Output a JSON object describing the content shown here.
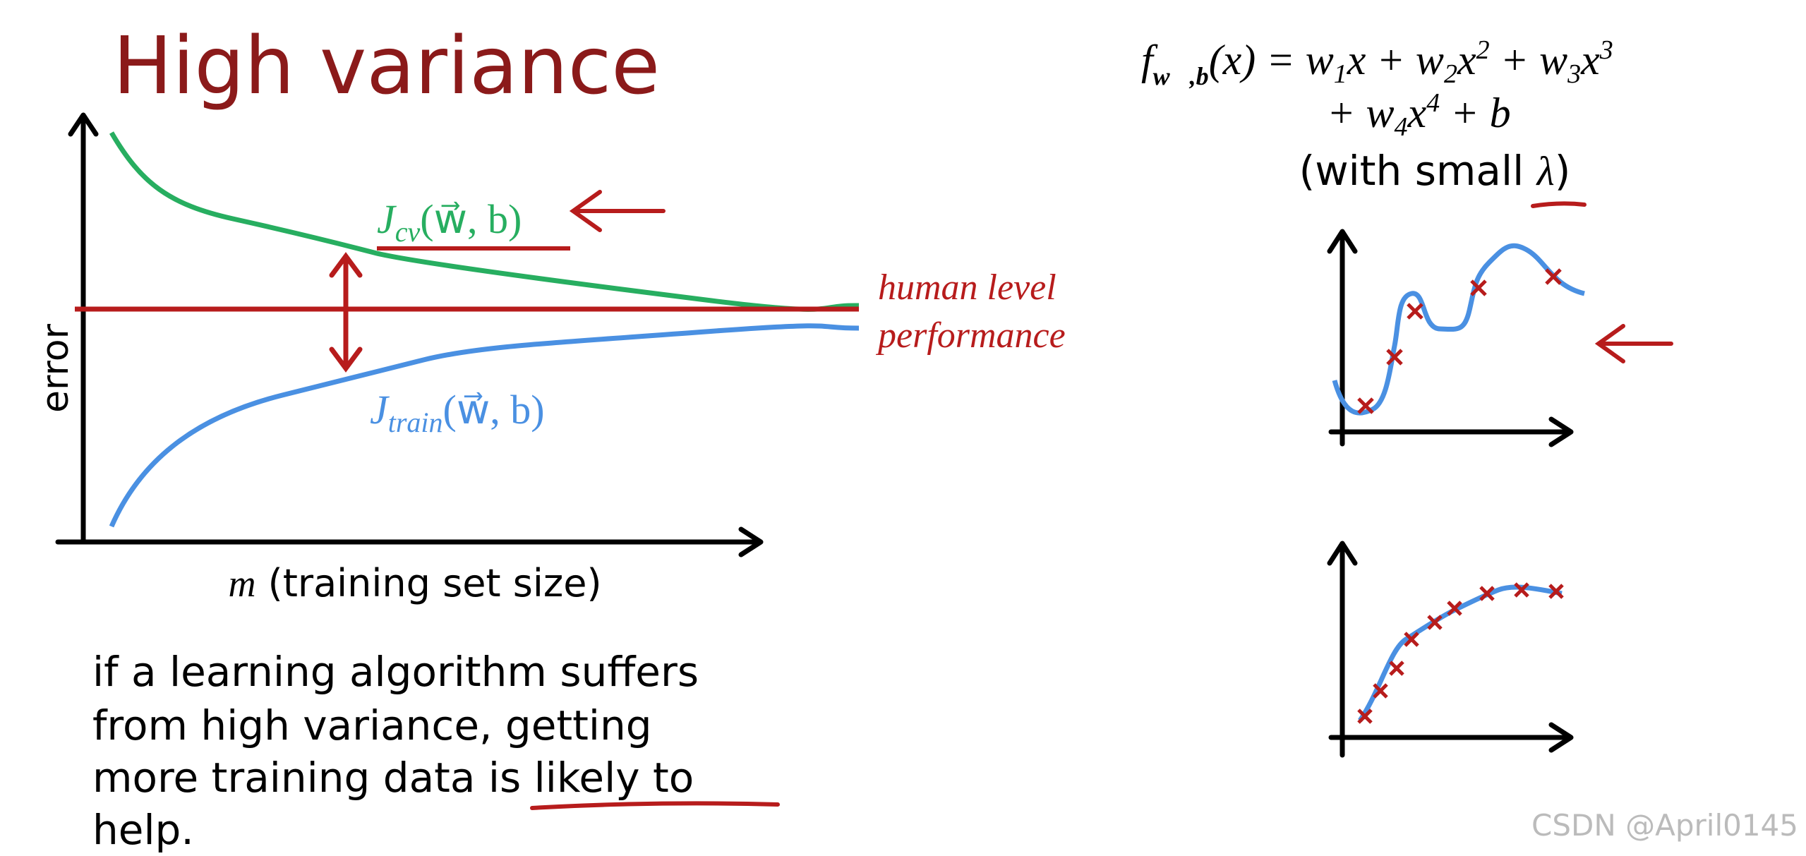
{
  "title": "High variance",
  "formula": {
    "line1": [
      "f",
      "w⃗,b",
      "(x) = w",
      "1",
      "x + w",
      "2",
      "x",
      "2",
      " + w",
      "3",
      "x",
      "3"
    ],
    "line2": [
      "+ w",
      "4",
      "x",
      "4",
      " + b"
    ],
    "line3": [
      "(with small ",
      "λ",
      ")"
    ]
  },
  "learning_curve": {
    "y_label": "error",
    "x_label": [
      "m",
      " (training set size)"
    ],
    "cv_label": [
      "J",
      "cv",
      "(w⃗, b)"
    ],
    "train_label": [
      "J",
      "train",
      "(w⃗, b)"
    ],
    "human_label": [
      "human level",
      "performance"
    ]
  },
  "text": [
    "if a learning algorithm suffers",
    "from high variance, getting",
    "more training data ",
    "is likely to",
    "help."
  ],
  "watermark": "CSDN @April0145"
}
